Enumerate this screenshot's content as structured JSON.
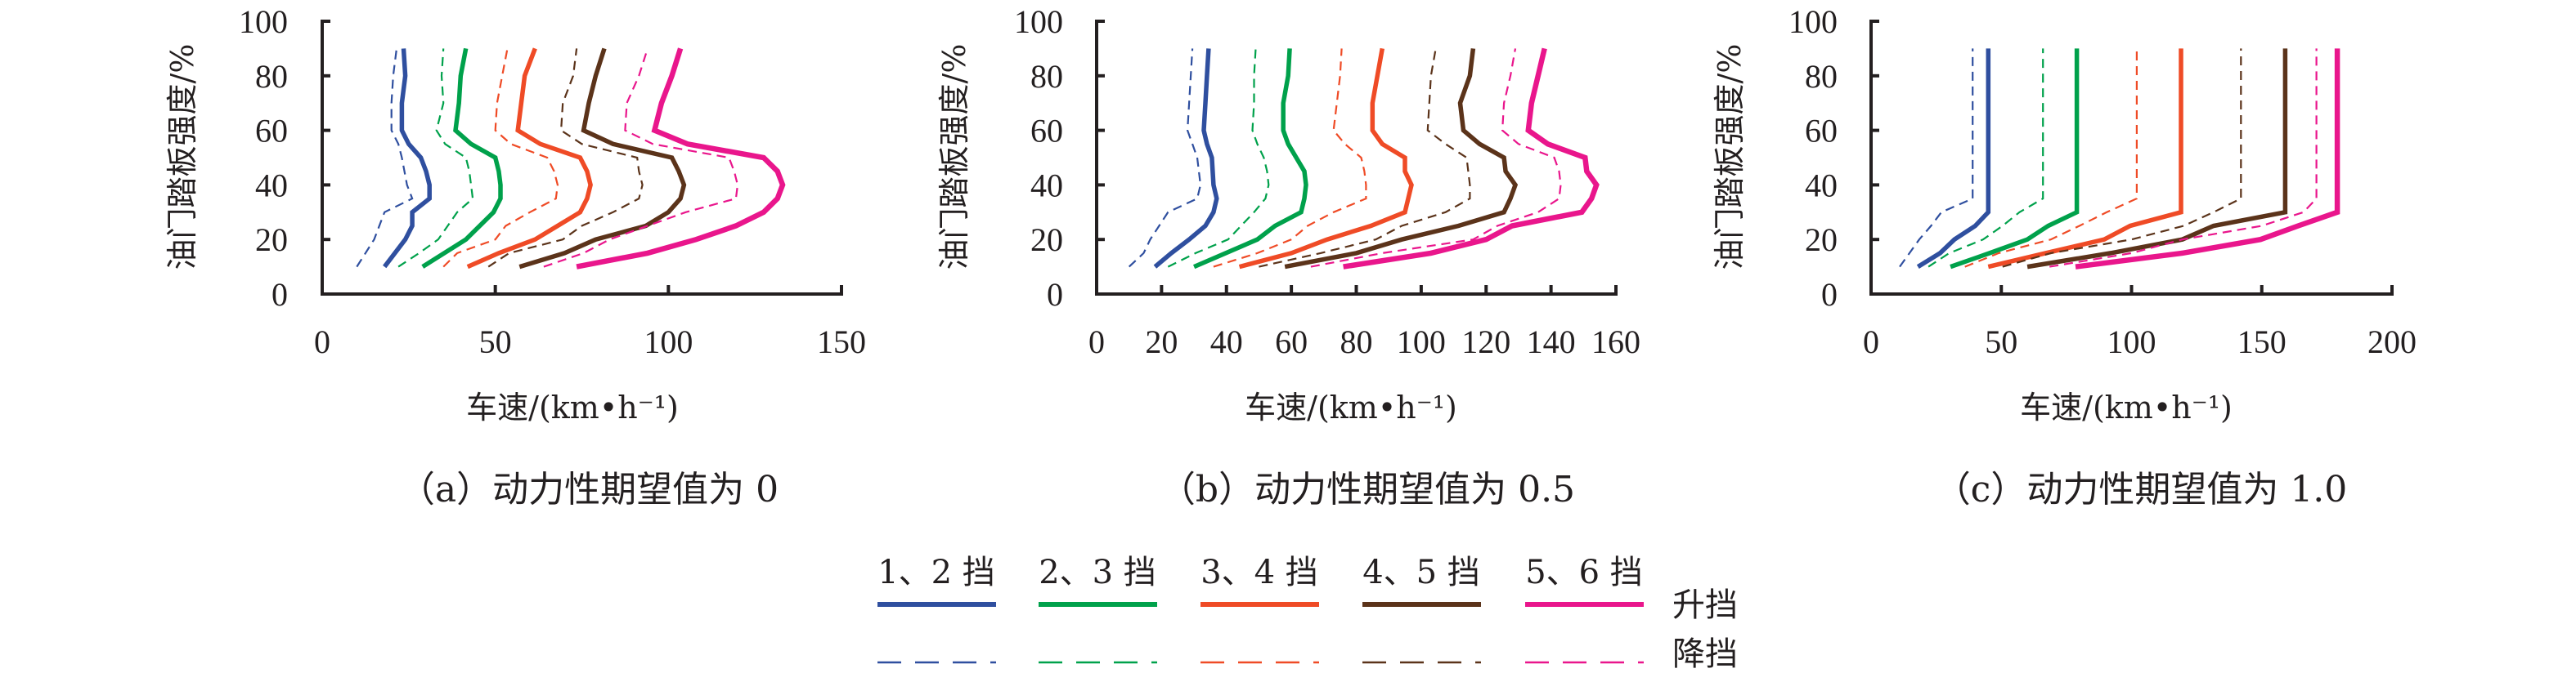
{
  "legend": {
    "items": [
      {
        "label": "1、2 挡",
        "color": "#2f4f9f"
      },
      {
        "label": "2、3 挡",
        "color": "#00a14b"
      },
      {
        "label": "3、4 挡",
        "color": "#ef4b26"
      },
      {
        "label": "4、5 挡",
        "color": "#5b331a"
      },
      {
        "label": "5、6 挡",
        "color": "#e9168c"
      }
    ],
    "upshift_label": "升挡",
    "downshift_label": "降挡"
  },
  "chart_data": [
    {
      "type": "line",
      "caption": "（a）动力性期望值为 0",
      "xlabel": "车速/(km•h⁻¹)",
      "ylabel": "油门踏板强度/%",
      "xlim": [
        0,
        150
      ],
      "ylim": [
        0,
        100
      ],
      "xticks": [
        "0",
        "50",
        "100",
        "150"
      ],
      "yticks": [
        "0",
        "20",
        "40",
        "60",
        "80",
        "100"
      ],
      "grid": false,
      "series": [
        {
          "name": "1、2 挡 升挡",
          "gear": 0,
          "style": "solid",
          "y": [
            10,
            20,
            25,
            30,
            35,
            40,
            45,
            50,
            55,
            60,
            70,
            80,
            90
          ],
          "x": [
            18,
            24,
            26,
            26,
            31,
            31,
            30,
            28.5,
            25,
            23,
            23,
            24,
            23.5
          ]
        },
        {
          "name": "1、2 挡 降挡",
          "gear": 0,
          "style": "dashed",
          "y": [
            10,
            20,
            30,
            35,
            40,
            50,
            55,
            60,
            70,
            80,
            90
          ],
          "x": [
            10,
            15,
            18,
            26,
            24.5,
            23,
            22,
            20,
            20,
            20.5,
            21.5
          ]
        },
        {
          "name": "2、3 挡 升挡",
          "gear": 1,
          "style": "solid",
          "y": [
            10,
            20,
            30,
            35,
            40,
            45,
            50,
            55,
            60,
            70,
            80,
            90
          ],
          "x": [
            29,
            41.5,
            49.5,
            51.5,
            51.5,
            51,
            50,
            43,
            38.5,
            39.5,
            40,
            41.5
          ]
        },
        {
          "name": "2、3 挡 降挡",
          "gear": 1,
          "style": "dashed",
          "y": [
            10,
            15,
            20,
            30,
            35,
            40,
            45,
            50,
            55,
            60,
            70,
            80,
            90
          ],
          "x": [
            22,
            28,
            33.5,
            39,
            43.5,
            43,
            42.5,
            41.5,
            35.5,
            33,
            35,
            34.5,
            35
          ]
        },
        {
          "name": "3、4 挡 升挡",
          "gear": 2,
          "style": "solid",
          "y": [
            10,
            15,
            20,
            25,
            30,
            35,
            40,
            45,
            50,
            55,
            60,
            70,
            80,
            90
          ],
          "x": [
            42,
            51,
            61.5,
            68,
            74.5,
            76.5,
            77.5,
            76.5,
            74.5,
            63,
            56.5,
            57.5,
            58.5,
            61.5
          ]
        },
        {
          "name": "3、4 挡 降挡",
          "gear": 2,
          "style": "dashed",
          "y": [
            10,
            15,
            20,
            25,
            30,
            35,
            40,
            45,
            50,
            55,
            60,
            70,
            80,
            90
          ],
          "x": [
            35,
            39,
            50,
            53,
            60,
            67.5,
            68,
            67,
            65,
            54.5,
            50,
            50.5,
            52,
            53.5
          ]
        },
        {
          "name": "4、5 挡 升挡",
          "gear": 3,
          "style": "solid",
          "y": [
            10,
            15,
            20,
            25,
            30,
            35,
            40,
            45,
            50,
            55,
            60,
            70,
            80,
            90
          ],
          "x": [
            57,
            70,
            79,
            93.5,
            100,
            103.5,
            104.5,
            103,
            101,
            84,
            75.5,
            77,
            79,
            81.5
          ]
        },
        {
          "name": "4、5 挡 降挡",
          "gear": 3,
          "style": "dashed",
          "y": [
            10,
            15,
            20,
            25,
            30,
            35,
            40,
            45,
            50,
            55,
            60,
            70,
            80,
            90
          ],
          "x": [
            48,
            54,
            69.5,
            75,
            84,
            91.5,
            92.5,
            91.5,
            91,
            75,
            69,
            69.5,
            72.5,
            73.5
          ]
        },
        {
          "name": "5、6 挡 升挡",
          "gear": 4,
          "style": "solid",
          "y": [
            10,
            15,
            20,
            25,
            30,
            35,
            40,
            45,
            50,
            55,
            60,
            70,
            80,
            90
          ],
          "x": [
            73.5,
            94,
            108,
            119.5,
            127.5,
            131.5,
            133,
            131.5,
            127.5,
            105.5,
            96,
            98,
            101,
            103.5
          ]
        },
        {
          "name": "5、6 挡 降挡",
          "gear": 4,
          "style": "dashed",
          "y": [
            10,
            15,
            20,
            30,
            35,
            40,
            45,
            50,
            55,
            60,
            70,
            80,
            90
          ],
          "x": [
            64,
            75.5,
            83,
            105,
            119.5,
            120,
            119,
            117.5,
            95.5,
            87.5,
            88,
            91.5,
            94
          ]
        }
      ]
    },
    {
      "type": "line",
      "caption": "（b）动力性期望值为 0.5",
      "xlabel": "车速/(km•h⁻¹)",
      "ylabel": "油门踏板强度/%",
      "xlim": [
        0,
        160
      ],
      "ylim": [
        0,
        100
      ],
      "xticks": [
        "0",
        "20",
        "40",
        "60",
        "80",
        "100",
        "120",
        "140",
        "160"
      ],
      "yticks": [
        "0",
        "20",
        "40",
        "60",
        "80",
        "100"
      ],
      "grid": false,
      "series": [
        {
          "name": "1、2 挡 升挡",
          "gear": 0,
          "style": "solid",
          "y": [
            10,
            15,
            20,
            25,
            30,
            35,
            40,
            50,
            55,
            60,
            70,
            80,
            90
          ],
          "x": [
            18,
            23,
            28.5,
            33.5,
            36,
            37,
            36,
            35.5,
            34,
            33,
            33.5,
            34,
            34.5
          ]
        },
        {
          "name": "1、2 挡 降挡",
          "gear": 0,
          "style": "dashed",
          "y": [
            10,
            15,
            20,
            30,
            35,
            40,
            50,
            55,
            60,
            70,
            80,
            90
          ],
          "x": [
            10,
            14.5,
            16.5,
            22,
            31,
            32,
            31,
            29.5,
            28,
            28.5,
            29,
            29.5
          ]
        },
        {
          "name": "2、3 挡 升挡",
          "gear": 1,
          "style": "solid",
          "y": [
            10,
            20,
            25,
            30,
            35,
            40,
            45,
            50,
            55,
            60,
            70,
            80,
            90
          ],
          "x": [
            30,
            49.5,
            55,
            63,
            64,
            64.5,
            64,
            61.5,
            59,
            57.5,
            57.5,
            59,
            59.5
          ]
        },
        {
          "name": "2、3 挡 降挡",
          "gear": 1,
          "style": "dashed",
          "y": [
            10,
            15,
            20,
            30,
            35,
            40,
            45,
            50,
            55,
            60,
            70,
            80,
            90
          ],
          "x": [
            22,
            30.5,
            40.5,
            48.5,
            52,
            53,
            52.5,
            51.5,
            49.5,
            48,
            48.5,
            48.5,
            49
          ]
        },
        {
          "name": "3、4 挡 升挡",
          "gear": 2,
          "style": "solid",
          "y": [
            10,
            15,
            20,
            25,
            30,
            35,
            40,
            45,
            50,
            55,
            60,
            70,
            80,
            90
          ],
          "x": [
            44,
            60,
            71,
            84.5,
            95,
            96,
            97,
            95,
            95,
            88,
            85,
            85,
            86.5,
            88
          ]
        },
        {
          "name": "3、4 挡 降挡",
          "gear": 2,
          "style": "dashed",
          "y": [
            10,
            15,
            20,
            25,
            30,
            35,
            40,
            45,
            50,
            55,
            60,
            70,
            80,
            90
          ],
          "x": [
            36,
            49.5,
            60,
            65,
            73,
            83,
            83,
            82.5,
            81.5,
            76.5,
            73,
            74,
            75,
            75.5
          ]
        },
        {
          "name": "4、5 挡 升挡",
          "gear": 3,
          "style": "solid",
          "y": [
            10,
            15,
            20,
            25,
            30,
            35,
            40,
            45,
            50,
            55,
            60,
            70,
            80,
            90
          ],
          "x": [
            58,
            80,
            94,
            111.5,
            125.5,
            127.5,
            129,
            126,
            125.5,
            118,
            113,
            112,
            115,
            116
          ]
        },
        {
          "name": "4、5 挡 降挡",
          "gear": 3,
          "style": "dashed",
          "y": [
            10,
            15,
            20,
            25,
            30,
            35,
            40,
            45,
            50,
            55,
            60,
            70,
            80,
            90
          ],
          "x": [
            50,
            69,
            86,
            94,
            107.5,
            115,
            115,
            114.5,
            114,
            107.5,
            102,
            102.5,
            103,
            104.5
          ]
        },
        {
          "name": "5、6 挡 升挡",
          "gear": 4,
          "style": "solid",
          "y": [
            10,
            15,
            20,
            25,
            30,
            35,
            40,
            45,
            50,
            55,
            60,
            70,
            80,
            90
          ],
          "x": [
            76,
            103,
            120,
            128,
            149.5,
            152.5,
            154,
            151,
            150.5,
            139,
            133,
            134,
            136,
            138
          ]
        },
        {
          "name": "5、6 挡 降挡",
          "gear": 4,
          "style": "dashed",
          "y": [
            10,
            15,
            20,
            25,
            30,
            35,
            40,
            45,
            50,
            55,
            60,
            70,
            80,
            90
          ],
          "x": [
            66,
            88,
            116,
            123.5,
            136,
            142.5,
            143,
            142.5,
            141,
            130,
            125,
            125.5,
            127.5,
            129
          ]
        }
      ]
    },
    {
      "type": "line",
      "caption": "（c）动力性期望值为 1.0",
      "xlabel": "车速/(km•h⁻¹)",
      "ylabel": "油门踏板强度/%",
      "xlim": [
        0,
        200
      ],
      "ylim": [
        0,
        100
      ],
      "xticks": [
        "0",
        "50",
        "100",
        "150",
        "200"
      ],
      "yticks": [
        "0",
        "20",
        "40",
        "60",
        "80",
        "100"
      ],
      "grid": false,
      "series": [
        {
          "name": "1、2 挡 升挡",
          "gear": 0,
          "style": "solid",
          "y": [
            10,
            15,
            20,
            25,
            30,
            90
          ],
          "x": [
            18,
            26.5,
            32,
            40,
            45,
            45
          ]
        },
        {
          "name": "1、2 挡 降挡",
          "gear": 0,
          "style": "dashed",
          "y": [
            10,
            20,
            25,
            30,
            35,
            90
          ],
          "x": [
            11,
            18.5,
            23,
            27,
            39,
            39
          ]
        },
        {
          "name": "2、3 挡 升挡",
          "gear": 1,
          "style": "solid",
          "y": [
            10,
            15,
            20,
            25,
            30,
            90
          ],
          "x": [
            30.5,
            45.5,
            60,
            68,
            79,
            79
          ]
        },
        {
          "name": "2、3 挡 降挡",
          "gear": 1,
          "style": "dashed",
          "y": [
            10,
            15,
            20,
            25,
            30,
            35,
            90
          ],
          "x": [
            22,
            30,
            43,
            50.5,
            57,
            66,
            66
          ]
        },
        {
          "name": "3、4 挡 升挡",
          "gear": 2,
          "style": "solid",
          "y": [
            10,
            15,
            20,
            25,
            30,
            90
          ],
          "x": [
            45,
            67,
            89.5,
            99.5,
            119,
            119
          ]
        },
        {
          "name": "3、4 挡 降挡",
          "gear": 2,
          "style": "dashed",
          "y": [
            10,
            15,
            20,
            25,
            30,
            35,
            90
          ],
          "x": [
            36,
            49,
            69,
            80,
            90.5,
            102,
            102
          ]
        },
        {
          "name": "4、5 挡 升挡",
          "gear": 3,
          "style": "solid",
          "y": [
            10,
            15,
            20,
            25,
            30,
            90
          ],
          "x": [
            60,
            92,
            119.5,
            131.5,
            159,
            159
          ]
        },
        {
          "name": "4、5 挡 降挡",
          "gear": 3,
          "style": "dashed",
          "y": [
            10,
            15,
            20,
            25,
            30,
            35,
            90
          ],
          "x": [
            50.5,
            69,
            100,
            120,
            131.5,
            142,
            142
          ]
        },
        {
          "name": "5、6 挡 升挡",
          "gear": 4,
          "style": "solid",
          "y": [
            10,
            15,
            20,
            25,
            30,
            90
          ],
          "x": [
            78.5,
            119.5,
            149.5,
            164,
            179,
            179
          ]
        },
        {
          "name": "5、6 挡 降挡",
          "gear": 4,
          "style": "dashed",
          "y": [
            10,
            15,
            20,
            25,
            30,
            35,
            90
          ],
          "x": [
            68.5,
            100,
            119.5,
            150,
            166,
            171,
            171
          ]
        }
      ]
    }
  ]
}
